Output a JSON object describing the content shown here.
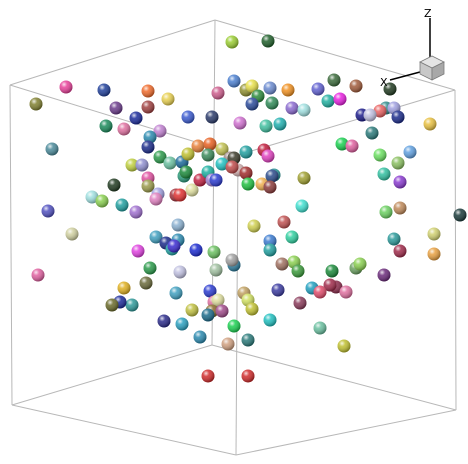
{
  "axes": {
    "z_label": "Z",
    "x_label": "X"
  },
  "colors": {
    "box_lines": "#b8b8b8",
    "axis_lines": "#000000",
    "orientation_cube": "#c8c8c8"
  },
  "scene": {
    "spheres": [
      [
        "#9acd32",
        232,
        42
      ],
      [
        "#1f5f2a",
        268,
        41
      ],
      [
        "#e8409a",
        66,
        87
      ],
      [
        "#808030",
        36,
        104
      ],
      [
        "#1f3f9a",
        104,
        90
      ],
      [
        "#f06a2a",
        148,
        91
      ],
      [
        "#e8d050",
        168,
        99
      ],
      [
        "#cd5c8c",
        218,
        93
      ],
      [
        "#4a7fd0",
        234,
        81
      ],
      [
        "#8f8f2f",
        246,
        90
      ],
      [
        "#e8e04a",
        252,
        86
      ],
      [
        "#6a8ad0",
        270,
        88
      ],
      [
        "#f09020",
        288,
        90
      ],
      [
        "#2a8a3a",
        258,
        96
      ],
      [
        "#2a4a9a",
        252,
        104
      ],
      [
        "#2e8b57",
        272,
        103
      ],
      [
        "#6060d0",
        318,
        89
      ],
      [
        "#3a6a3a",
        334,
        80
      ],
      [
        "#20b0a0",
        328,
        101
      ],
      [
        "#e820e0",
        340,
        99
      ],
      [
        "#a05a3a",
        356,
        86
      ],
      [
        "#203a20",
        390,
        89
      ],
      [
        "#2e8b8b",
        386,
        108
      ],
      [
        "#e86060",
        380,
        111
      ],
      [
        "#8a6ad0",
        292,
        108
      ],
      [
        "#6a3a8a",
        116,
        108
      ],
      [
        "#a04040",
        148,
        107
      ],
      [
        "#1a2a9a",
        136,
        118
      ],
      [
        "#1a8a5a",
        106,
        126
      ],
      [
        "#e070a0",
        124,
        129
      ],
      [
        "#3a5ad0",
        188,
        117
      ],
      [
        "#2a3a6a",
        212,
        117
      ],
      [
        "#d070d0",
        240,
        123
      ],
      [
        "#40c0a0",
        266,
        126
      ],
      [
        "#20b0b0",
        280,
        124
      ],
      [
        "#a0e0e0",
        304,
        110
      ],
      [
        "#1a1a8a",
        362,
        115
      ],
      [
        "#c0c0e0",
        370,
        115
      ],
      [
        "#a0a0e0",
        394,
        108
      ],
      [
        "#1a2a8a",
        398,
        117
      ],
      [
        "#2a7a7a",
        372,
        133
      ],
      [
        "#e8c040",
        430,
        124
      ],
      [
        "#4a8a9a",
        52,
        149
      ],
      [
        "#c080d0",
        160,
        131
      ],
      [
        "#2a8ab0",
        150,
        137
      ],
      [
        "#1a2a8a",
        148,
        147
      ],
      [
        "#2a9a4a",
        160,
        157
      ],
      [
        "#6ac0a0",
        170,
        163
      ],
      [
        "#1a6a9a",
        182,
        162
      ],
      [
        "#c0c030",
        188,
        154
      ],
      [
        "#e8803a",
        198,
        146
      ],
      [
        "#e86020",
        210,
        144
      ],
      [
        "#3a8a5a",
        208,
        155
      ],
      [
        "#c0c050",
        222,
        149
      ],
      [
        "#a08a8a",
        230,
        158
      ],
      [
        "#20c0c0",
        222,
        164
      ],
      [
        "#20a0a0",
        246,
        152
      ],
      [
        "#3a3a2a",
        234,
        158
      ],
      [
        "#c01a3a",
        264,
        150
      ],
      [
        "#e040c0",
        268,
        156
      ],
      [
        "#d0b0b0",
        238,
        170
      ],
      [
        "#a02a2a",
        246,
        173
      ],
      [
        "#2a9a9a",
        274,
        175
      ],
      [
        "#1ad050",
        342,
        144
      ],
      [
        "#e060a0",
        352,
        146
      ],
      [
        "#6ae060",
        380,
        155
      ],
      [
        "#8ac060",
        398,
        163
      ],
      [
        "#60a0e0",
        410,
        152
      ],
      [
        "#30c0a0",
        384,
        174
      ],
      [
        "#8a3ad0",
        400,
        182
      ],
      [
        "#c0d040",
        132,
        165
      ],
      [
        "#9090d0",
        142,
        165
      ],
      [
        "#203a20",
        114,
        185
      ],
      [
        "#e050a0",
        148,
        178
      ],
      [
        "#9a9a4a",
        148,
        186
      ],
      [
        "#2a9a7a",
        184,
        176
      ],
      [
        "#e0e0a0",
        192,
        190
      ],
      [
        "#1a8a3a",
        186,
        172
      ],
      [
        "#c02040",
        200,
        180
      ],
      [
        "#1ab0a0",
        208,
        172
      ],
      [
        "#a080d0",
        212,
        180
      ],
      [
        "#2a3ad0",
        216,
        180
      ],
      [
        "#c04a4a",
        232,
        167
      ],
      [
        "#a0303a",
        176,
        195
      ],
      [
        "#e03030",
        180,
        195
      ],
      [
        "#20c040",
        248,
        184
      ],
      [
        "#f0b050",
        262,
        184
      ],
      [
        "#2a4a8a",
        272,
        176
      ],
      [
        "#8a3a3a",
        270,
        187
      ],
      [
        "#a0a030",
        304,
        178
      ],
      [
        "#5050c0",
        48,
        211
      ],
      [
        "#a0e0e0",
        92,
        197
      ],
      [
        "#8ad050",
        102,
        201
      ],
      [
        "#20a0a0",
        122,
        205
      ],
      [
        "#a070d0",
        136,
        212
      ],
      [
        "#a0a0e0",
        158,
        194
      ],
      [
        "#e080c0",
        156,
        199
      ],
      [
        "#6ad060",
        386,
        212
      ],
      [
        "#c08a5a",
        400,
        208
      ],
      [
        "#1a3a3a",
        460,
        215
      ],
      [
        "#d0d0a0",
        72,
        234
      ],
      [
        "#8ab0d0",
        178,
        225
      ],
      [
        "#40a0c0",
        156,
        237
      ],
      [
        "#1a2a8a",
        166,
        243
      ],
      [
        "#2a8ab0",
        178,
        240
      ],
      [
        "#d0d050",
        254,
        226
      ],
      [
        "#c05050",
        284,
        222
      ],
      [
        "#40e0d0",
        302,
        206
      ],
      [
        "#3a7ad0",
        270,
        241
      ],
      [
        "#30d0a0",
        292,
        237
      ],
      [
        "#2a9a9a",
        394,
        239
      ],
      [
        "#d0d070",
        434,
        234
      ],
      [
        "#20a0a0",
        172,
        249
      ],
      [
        "#e8a040",
        434,
        254
      ],
      [
        "#8ad050",
        294,
        262
      ],
      [
        "#a02a4a",
        400,
        251
      ],
      [
        "#3a2ad0",
        174,
        246
      ],
      [
        "#1a2ad0",
        196,
        250
      ],
      [
        "#6ac060",
        214,
        252
      ],
      [
        "#e040e0",
        138,
        251
      ],
      [
        "#2a7a9a",
        234,
        265
      ],
      [
        "#a07060",
        282,
        264
      ],
      [
        "#a0a0a0",
        232,
        260
      ],
      [
        "#a0c0a0",
        216,
        270
      ],
      [
        "#e060a0",
        38,
        275
      ],
      [
        "#2a9a4a",
        150,
        268
      ],
      [
        "#6a6a3a",
        146,
        283
      ],
      [
        "#e0b020",
        124,
        288
      ],
      [
        "#c0c0e0",
        180,
        272
      ],
      [
        "#20a0a0",
        270,
        250
      ],
      [
        "#3a9a3a",
        298,
        271
      ],
      [
        "#20a0c0",
        312,
        288
      ],
      [
        "#1a8a3a",
        332,
        271
      ],
      [
        "#6aa060",
        356,
        268
      ],
      [
        "#8a2a4a",
        336,
        287
      ],
      [
        "#a02a4a",
        330,
        285
      ],
      [
        "#e070a0",
        346,
        292
      ],
      [
        "#3a3aa0",
        278,
        290
      ],
      [
        "#e04a6a",
        320,
        292
      ],
      [
        "#8a3a5a",
        300,
        303
      ],
      [
        "#8ad050",
        360,
        264
      ],
      [
        "#6a2a7a",
        384,
        275
      ],
      [
        "#2e9a9a",
        132,
        305
      ],
      [
        "#1a2a9a",
        120,
        302
      ],
      [
        "#6a6a2a",
        112,
        305
      ],
      [
        "#c0c040",
        192,
        310
      ],
      [
        "#40a0c0",
        176,
        293
      ],
      [
        "#2a3ad0",
        210,
        291
      ],
      [
        "#e070a0",
        214,
        302
      ],
      [
        "#e0e0a0",
        218,
        300
      ],
      [
        "#c0a060",
        244,
        293
      ],
      [
        "#d0e060",
        248,
        300
      ],
      [
        "#2a2a8a",
        164,
        321
      ],
      [
        "#2aa0c0",
        182,
        324
      ],
      [
        "#8a6a2a",
        212,
        311
      ],
      [
        "#1a6a8a",
        208,
        315
      ],
      [
        "#a04a8a",
        222,
        311
      ],
      [
        "#c0c030",
        252,
        309
      ],
      [
        "#1ad050",
        234,
        326
      ],
      [
        "#20c0c0",
        270,
        320
      ],
      [
        "#6ac0a0",
        320,
        328
      ],
      [
        "#2a8ab0",
        200,
        337
      ],
      [
        "#d0a080",
        228,
        344
      ],
      [
        "#c0c030",
        344,
        346
      ],
      [
        "#2a7a7a",
        248,
        340
      ],
      [
        "#d02a2a",
        208,
        376
      ],
      [
        "#d02a2a",
        248,
        376
      ]
    ]
  }
}
